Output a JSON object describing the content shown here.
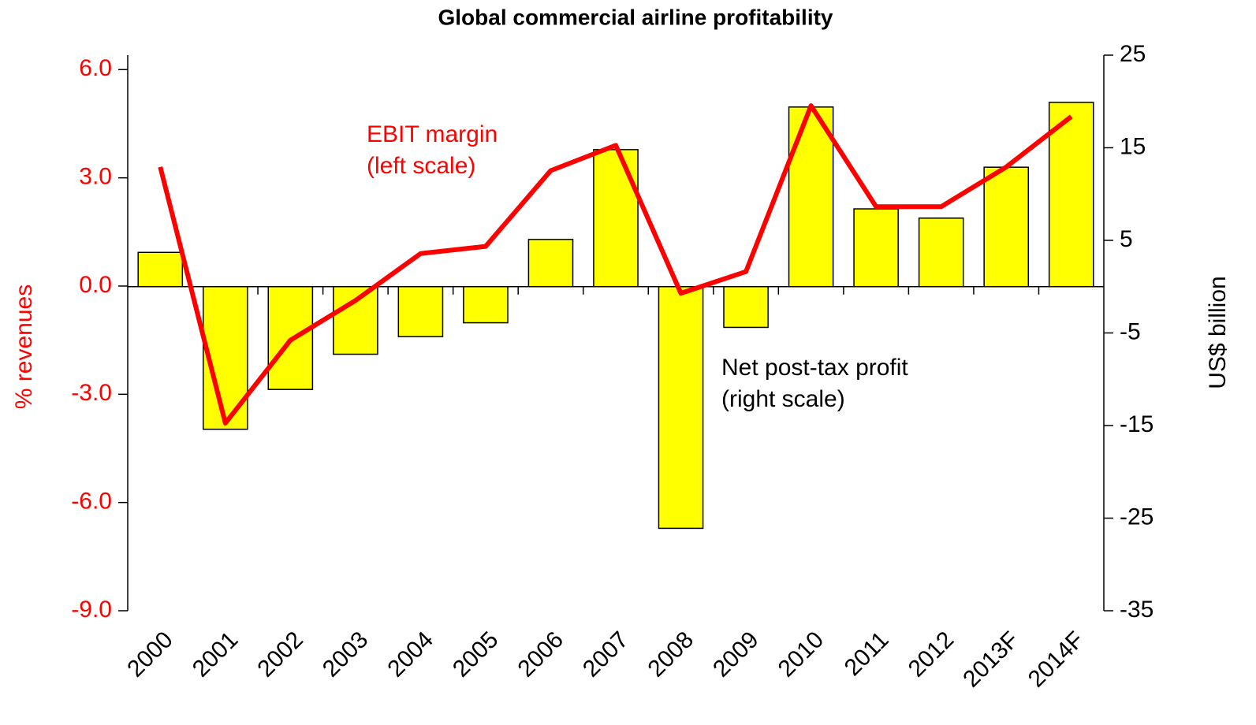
{
  "chart_data": {
    "type": "bar_line",
    "title": "Global commercial airline profitability",
    "categories": [
      "2000",
      "2001",
      "2002",
      "2003",
      "2004",
      "2005",
      "2006",
      "2007",
      "2008",
      "2009",
      "2010",
      "2011",
      "2012",
      "2013F",
      "2014F"
    ],
    "series": [
      {
        "name": "EBIT margin",
        "note": "(left scale)",
        "type": "line",
        "axis": "y",
        "color": "#ff0000",
        "values": [
          3.3,
          -3.8,
          -1.5,
          -0.4,
          0.9,
          1.1,
          3.2,
          3.9,
          -0.2,
          0.4,
          5.0,
          2.2,
          2.2,
          3.3,
          4.7
        ]
      },
      {
        "name": "Net post-tax profit",
        "note": "(right scale)",
        "type": "bar",
        "axis": "y2",
        "color": "#ffff00",
        "values": [
          3.7,
          -15.4,
          -11.1,
          -7.3,
          -5.4,
          -3.9,
          5.1,
          14.8,
          -26.1,
          -4.4,
          19.4,
          8.4,
          7.4,
          12.9,
          19.9
        ]
      }
    ],
    "ylabel": "% revenues",
    "y2label": "US$ billion",
    "ylim": [
      -9,
      6.4
    ],
    "yticks": [
      {
        "value": 6,
        "label": "6.0"
      },
      {
        "value": 3,
        "label": "3.0"
      },
      {
        "value": 0,
        "label": "0.0"
      },
      {
        "value": -3,
        "label": "-3.0"
      },
      {
        "value": -6,
        "label": "-6.0"
      },
      {
        "value": -9,
        "label": "-9.0"
      }
    ],
    "y2lim": [
      -35,
      25
    ],
    "y2ticks": [
      25,
      15,
      5,
      -5,
      -15,
      -25,
      -35
    ]
  }
}
